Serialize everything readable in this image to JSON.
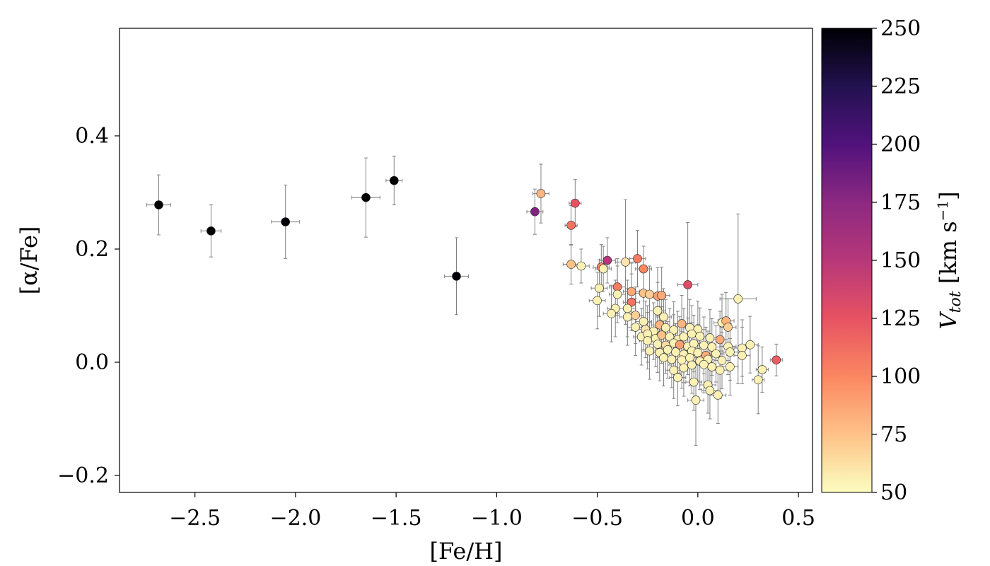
{
  "chart_data": {
    "type": "scatter",
    "xlabel": "[Fe/H]",
    "ylabel": "[α/Fe]",
    "xlim": [
      -2.875,
      0.57
    ],
    "ylim": [
      -0.23,
      0.59
    ],
    "x_ticks": [
      -2.5,
      -2.0,
      -1.5,
      -1.0,
      -0.5,
      0.0,
      0.5
    ],
    "x_tick_labels": [
      "−2.5",
      "−2.0",
      "−1.5",
      "−1.0",
      "−0.5",
      "0.0",
      "0.5"
    ],
    "y_ticks": [
      -0.2,
      0.0,
      0.2,
      0.4
    ],
    "y_tick_labels": [
      "−0.2",
      "0.0",
      "0.2",
      "0.4"
    ],
    "grid": false,
    "colorbar": {
      "label_prefix": "V",
      "label_subscript": "tot",
      "label_unit": " [km s",
      "label_unit_sup": "−1",
      "label_close": "]",
      "colormap": "magma_r",
      "range": [
        50,
        250
      ],
      "ticks": [
        50,
        75,
        100,
        125,
        150,
        175,
        200,
        225,
        250
      ],
      "tick_labels": [
        "50",
        "75",
        "100",
        "125",
        "150",
        "175",
        "200",
        "225",
        "250"
      ]
    },
    "colors": {
      "errorbar": "#808080",
      "marker_edge": "#202020",
      "frame": "#000000"
    },
    "points": [
      {
        "x": -2.68,
        "y": 0.278,
        "v": 250,
        "xerr": 0.06,
        "yerr": 0.053
      },
      {
        "x": -2.42,
        "y": 0.232,
        "v": 250,
        "xerr": 0.05,
        "yerr": 0.046
      },
      {
        "x": -2.05,
        "y": 0.248,
        "v": 250,
        "xerr": 0.07,
        "yerr": 0.065
      },
      {
        "x": -1.65,
        "y": 0.291,
        "v": 250,
        "xerr": 0.07,
        "yerr": 0.07
      },
      {
        "x": -1.51,
        "y": 0.321,
        "v": 250,
        "xerr": 0.04,
        "yerr": 0.043
      },
      {
        "x": -1.2,
        "y": 0.152,
        "v": 250,
        "xerr": 0.06,
        "yerr": 0.068
      },
      {
        "x": -0.81,
        "y": 0.266,
        "v": 180,
        "xerr": 0.04,
        "yerr": 0.04
      },
      {
        "x": -0.78,
        "y": 0.298,
        "v": 80,
        "xerr": 0.04,
        "yerr": 0.052
      },
      {
        "x": -0.61,
        "y": 0.281,
        "v": 125,
        "xerr": 0.03,
        "yerr": 0.042
      },
      {
        "x": -0.63,
        "y": 0.242,
        "v": 110,
        "xerr": 0.03,
        "yerr": 0.035
      },
      {
        "x": -0.63,
        "y": 0.173,
        "v": 75,
        "xerr": 0.04,
        "yerr": 0.035
      },
      {
        "x": -0.58,
        "y": 0.17,
        "v": 55,
        "xerr": 0.04,
        "yerr": 0.03
      },
      {
        "x": -0.48,
        "y": 0.168,
        "v": 100,
        "xerr": 0.04,
        "yerr": 0.04
      },
      {
        "x": -0.45,
        "y": 0.18,
        "v": 150,
        "xerr": 0.04,
        "yerr": 0.04
      },
      {
        "x": -0.47,
        "y": 0.165,
        "v": 55,
        "xerr": 0.04,
        "yerr": 0.04
      },
      {
        "x": -0.49,
        "y": 0.131,
        "v": 55,
        "xerr": 0.04,
        "yerr": 0.05
      },
      {
        "x": -0.5,
        "y": 0.109,
        "v": 55,
        "xerr": 0.04,
        "yerr": 0.05
      },
      {
        "x": -0.36,
        "y": 0.177,
        "v": 60,
        "xerr": 0.05,
        "yerr": 0.11
      },
      {
        "x": -0.3,
        "y": 0.183,
        "v": 105,
        "xerr": 0.04,
        "yerr": 0.05
      },
      {
        "x": -0.27,
        "y": 0.165,
        "v": 100,
        "xerr": 0.04,
        "yerr": 0.04
      },
      {
        "x": -0.4,
        "y": 0.133,
        "v": 105,
        "xerr": 0.04,
        "yerr": 0.05
      },
      {
        "x": -0.33,
        "y": 0.125,
        "v": 85,
        "xerr": 0.04,
        "yerr": 0.05
      },
      {
        "x": -0.27,
        "y": 0.122,
        "v": 75,
        "xerr": 0.04,
        "yerr": 0.05
      },
      {
        "x": -0.24,
        "y": 0.12,
        "v": 70,
        "xerr": 0.04,
        "yerr": 0.05
      },
      {
        "x": -0.2,
        "y": 0.117,
        "v": 90,
        "xerr": 0.04,
        "yerr": 0.05
      },
      {
        "x": -0.18,
        "y": 0.118,
        "v": 85,
        "xerr": 0.04,
        "yerr": 0.05
      },
      {
        "x": -0.4,
        "y": 0.12,
        "v": 55,
        "xerr": 0.04,
        "yerr": 0.05
      },
      {
        "x": -0.33,
        "y": 0.106,
        "v": 110,
        "xerr": 0.04,
        "yerr": 0.05
      },
      {
        "x": -0.05,
        "y": 0.137,
        "v": 130,
        "xerr": 0.05,
        "yerr": 0.11
      },
      {
        "x": 0.2,
        "y": 0.112,
        "v": 55,
        "xerr": 0.09,
        "yerr": 0.15
      },
      {
        "x": -0.41,
        "y": 0.095,
        "v": 55,
        "xerr": 0.04,
        "yerr": 0.05
      },
      {
        "x": -0.35,
        "y": 0.095,
        "v": 55,
        "xerr": 0.04,
        "yerr": 0.05
      },
      {
        "x": -0.43,
        "y": 0.086,
        "v": 55,
        "xerr": 0.04,
        "yerr": 0.05
      },
      {
        "x": -0.35,
        "y": 0.08,
        "v": 55,
        "xerr": 0.04,
        "yerr": 0.05
      },
      {
        "x": -0.31,
        "y": 0.083,
        "v": 70,
        "xerr": 0.04,
        "yerr": 0.05
      },
      {
        "x": -0.27,
        "y": 0.072,
        "v": 55,
        "xerr": 0.04,
        "yerr": 0.05
      },
      {
        "x": -0.2,
        "y": 0.091,
        "v": 55,
        "xerr": 0.04,
        "yerr": 0.05
      },
      {
        "x": -0.17,
        "y": 0.08,
        "v": 55,
        "xerr": 0.04,
        "yerr": 0.05
      },
      {
        "x": -0.31,
        "y": 0.062,
        "v": 55,
        "xerr": 0.04,
        "yerr": 0.05
      },
      {
        "x": -0.26,
        "y": 0.058,
        "v": 60,
        "xerr": 0.04,
        "yerr": 0.05
      },
      {
        "x": -0.22,
        "y": 0.055,
        "v": 55,
        "xerr": 0.04,
        "yerr": 0.05
      },
      {
        "x": -0.19,
        "y": 0.066,
        "v": 80,
        "xerr": 0.04,
        "yerr": 0.05
      },
      {
        "x": -0.16,
        "y": 0.061,
        "v": 55,
        "xerr": 0.04,
        "yerr": 0.05
      },
      {
        "x": -0.12,
        "y": 0.057,
        "v": 55,
        "xerr": 0.04,
        "yerr": 0.05
      },
      {
        "x": -0.08,
        "y": 0.068,
        "v": 80,
        "xerr": 0.04,
        "yerr": 0.05
      },
      {
        "x": -0.04,
        "y": 0.061,
        "v": 55,
        "xerr": 0.04,
        "yerr": 0.05
      },
      {
        "x": 0.0,
        "y": 0.058,
        "v": 55,
        "xerr": 0.04,
        "yerr": 0.05
      },
      {
        "x": 0.12,
        "y": 0.07,
        "v": 55,
        "xerr": 0.04,
        "yerr": 0.05
      },
      {
        "x": 0.14,
        "y": 0.073,
        "v": 80,
        "xerr": 0.04,
        "yerr": 0.05
      },
      {
        "x": 0.15,
        "y": 0.062,
        "v": 70,
        "xerr": 0.04,
        "yerr": 0.05
      },
      {
        "x": -0.28,
        "y": 0.045,
        "v": 55,
        "xerr": 0.04,
        "yerr": 0.05
      },
      {
        "x": -0.25,
        "y": 0.05,
        "v": 55,
        "xerr": 0.04,
        "yerr": 0.05
      },
      {
        "x": -0.21,
        "y": 0.042,
        "v": 55,
        "xerr": 0.04,
        "yerr": 0.05
      },
      {
        "x": -0.18,
        "y": 0.048,
        "v": 75,
        "xerr": 0.04,
        "yerr": 0.05
      },
      {
        "x": -0.14,
        "y": 0.045,
        "v": 55,
        "xerr": 0.04,
        "yerr": 0.05
      },
      {
        "x": -0.1,
        "y": 0.04,
        "v": 55,
        "xerr": 0.04,
        "yerr": 0.05
      },
      {
        "x": -0.07,
        "y": 0.045,
        "v": 55,
        "xerr": 0.04,
        "yerr": 0.05
      },
      {
        "x": -0.03,
        "y": 0.05,
        "v": 55,
        "xerr": 0.04,
        "yerr": 0.05
      },
      {
        "x": 0.01,
        "y": 0.046,
        "v": 55,
        "xerr": 0.04,
        "yerr": 0.05
      },
      {
        "x": 0.06,
        "y": 0.043,
        "v": 55,
        "xerr": 0.04,
        "yerr": 0.05
      },
      {
        "x": 0.11,
        "y": 0.04,
        "v": 85,
        "xerr": 0.04,
        "yerr": 0.05
      },
      {
        "x": -0.25,
        "y": 0.038,
        "v": 55,
        "xerr": 0.04,
        "yerr": 0.05
      },
      {
        "x": -0.2,
        "y": 0.032,
        "v": 55,
        "xerr": 0.04,
        "yerr": 0.05
      },
      {
        "x": -0.16,
        "y": 0.03,
        "v": 65,
        "xerr": 0.04,
        "yerr": 0.05
      },
      {
        "x": -0.12,
        "y": 0.034,
        "v": 55,
        "xerr": 0.04,
        "yerr": 0.05
      },
      {
        "x": -0.09,
        "y": 0.031,
        "v": 90,
        "xerr": 0.04,
        "yerr": 0.05
      },
      {
        "x": -0.05,
        "y": 0.028,
        "v": 55,
        "xerr": 0.04,
        "yerr": 0.05
      },
      {
        "x": -0.02,
        "y": 0.033,
        "v": 55,
        "xerr": 0.04,
        "yerr": 0.05
      },
      {
        "x": 0.03,
        "y": 0.03,
        "v": 55,
        "xerr": 0.04,
        "yerr": 0.05
      },
      {
        "x": 0.07,
        "y": 0.027,
        "v": 55,
        "xerr": 0.04,
        "yerr": 0.05
      },
      {
        "x": 0.15,
        "y": 0.028,
        "v": 55,
        "xerr": 0.04,
        "yerr": 0.05
      },
      {
        "x": 0.22,
        "y": 0.025,
        "v": 55,
        "xerr": 0.04,
        "yerr": 0.05
      },
      {
        "x": 0.26,
        "y": 0.031,
        "v": 55,
        "xerr": 0.04,
        "yerr": 0.05
      },
      {
        "x": -0.24,
        "y": 0.02,
        "v": 55,
        "xerr": 0.04,
        "yerr": 0.05
      },
      {
        "x": -0.19,
        "y": 0.017,
        "v": 55,
        "xerr": 0.04,
        "yerr": 0.05
      },
      {
        "x": -0.15,
        "y": 0.022,
        "v": 55,
        "xerr": 0.04,
        "yerr": 0.05
      },
      {
        "x": -0.11,
        "y": 0.018,
        "v": 55,
        "xerr": 0.04,
        "yerr": 0.05
      },
      {
        "x": -0.07,
        "y": 0.014,
        "v": 55,
        "xerr": 0.04,
        "yerr": 0.05
      },
      {
        "x": -0.03,
        "y": 0.02,
        "v": 55,
        "xerr": 0.04,
        "yerr": 0.05
      },
      {
        "x": 0.0,
        "y": 0.017,
        "v": 55,
        "xerr": 0.04,
        "yerr": 0.05
      },
      {
        "x": 0.04,
        "y": 0.012,
        "v": 85,
        "xerr": 0.04,
        "yerr": 0.05
      },
      {
        "x": 0.09,
        "y": 0.015,
        "v": 55,
        "xerr": 0.04,
        "yerr": 0.05
      },
      {
        "x": 0.16,
        "y": 0.018,
        "v": 55,
        "xerr": 0.04,
        "yerr": 0.05
      },
      {
        "x": 0.22,
        "y": 0.012,
        "v": 55,
        "xerr": 0.04,
        "yerr": 0.05
      },
      {
        "x": -0.17,
        "y": 0.008,
        "v": 55,
        "xerr": 0.04,
        "yerr": 0.05
      },
      {
        "x": -0.13,
        "y": 0.005,
        "v": 55,
        "xerr": 0.04,
        "yerr": 0.05
      },
      {
        "x": -0.08,
        "y": 0.004,
        "v": 55,
        "xerr": 0.04,
        "yerr": 0.05
      },
      {
        "x": -0.04,
        "y": 0.008,
        "v": 55,
        "xerr": 0.04,
        "yerr": 0.05
      },
      {
        "x": 0.01,
        "y": 0.002,
        "v": 55,
        "xerr": 0.04,
        "yerr": 0.05
      },
      {
        "x": 0.05,
        "y": 0.005,
        "v": 55,
        "xerr": 0.04,
        "yerr": 0.05
      },
      {
        "x": 0.12,
        "y": 0.003,
        "v": 55,
        "xerr": 0.04,
        "yerr": 0.05
      },
      {
        "x": 0.39,
        "y": 0.004,
        "v": 120,
        "xerr": 0.03,
        "yerr": 0.028
      },
      {
        "x": -0.12,
        "y": -0.014,
        "v": 55,
        "xerr": 0.04,
        "yerr": 0.05
      },
      {
        "x": -0.07,
        "y": -0.01,
        "v": 55,
        "xerr": 0.04,
        "yerr": 0.05
      },
      {
        "x": -0.03,
        "y": -0.005,
        "v": 55,
        "xerr": 0.04,
        "yerr": 0.05
      },
      {
        "x": 0.03,
        "y": -0.004,
        "v": 55,
        "xerr": 0.04,
        "yerr": 0.05
      },
      {
        "x": 0.07,
        "y": -0.008,
        "v": 55,
        "xerr": 0.04,
        "yerr": 0.05
      },
      {
        "x": 0.11,
        "y": -0.014,
        "v": 55,
        "xerr": 0.04,
        "yerr": 0.05
      },
      {
        "x": 0.16,
        "y": -0.008,
        "v": 55,
        "xerr": 0.04,
        "yerr": 0.05
      },
      {
        "x": 0.32,
        "y": -0.013,
        "v": 55,
        "xerr": 0.03,
        "yerr": 0.04
      },
      {
        "x": -0.1,
        "y": -0.027,
        "v": 55,
        "xerr": 0.04,
        "yerr": 0.05
      },
      {
        "x": -0.02,
        "y": -0.035,
        "v": 55,
        "xerr": 0.04,
        "yerr": 0.05
      },
      {
        "x": 0.05,
        "y": -0.04,
        "v": 55,
        "xerr": 0.04,
        "yerr": 0.05
      },
      {
        "x": 0.06,
        "y": -0.05,
        "v": 55,
        "xerr": 0.04,
        "yerr": 0.05
      },
      {
        "x": 0.1,
        "y": -0.058,
        "v": 55,
        "xerr": 0.04,
        "yerr": 0.05
      },
      {
        "x": 0.3,
        "y": -0.031,
        "v": 55,
        "xerr": 0.03,
        "yerr": 0.06
      },
      {
        "x": -0.01,
        "y": -0.067,
        "v": 55,
        "xerr": 0.04,
        "yerr": 0.08
      }
    ]
  }
}
